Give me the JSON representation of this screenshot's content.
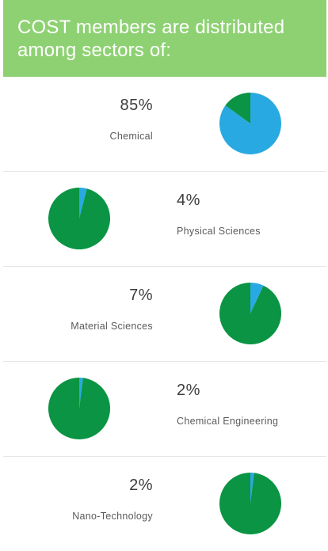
{
  "header": {
    "title": "COST members are distributed among sectors of:"
  },
  "colors": {
    "header_bg": "#8ed173",
    "primary": "#28a9e1",
    "remainder": "#0a9443"
  },
  "chart_data": [
    {
      "type": "pie",
      "title": "",
      "label": "Chemical",
      "value_text": "85%",
      "value": 85,
      "slices": [
        85,
        15
      ]
    },
    {
      "type": "pie",
      "title": "",
      "label": "Physical Sciences",
      "value_text": "4%",
      "value": 4,
      "slices": [
        4,
        96
      ]
    },
    {
      "type": "pie",
      "title": "",
      "label": "Material Sciences",
      "value_text": "7%",
      "value": 7,
      "slices": [
        7,
        93
      ]
    },
    {
      "type": "pie",
      "title": "",
      "label": "Chemical Engineering",
      "value_text": "2%",
      "value": 2,
      "slices": [
        2,
        98
      ]
    },
    {
      "type": "pie",
      "title": "",
      "label": "Nano-Technology",
      "value_text": "2%",
      "value": 2,
      "slices": [
        2,
        98
      ]
    }
  ]
}
